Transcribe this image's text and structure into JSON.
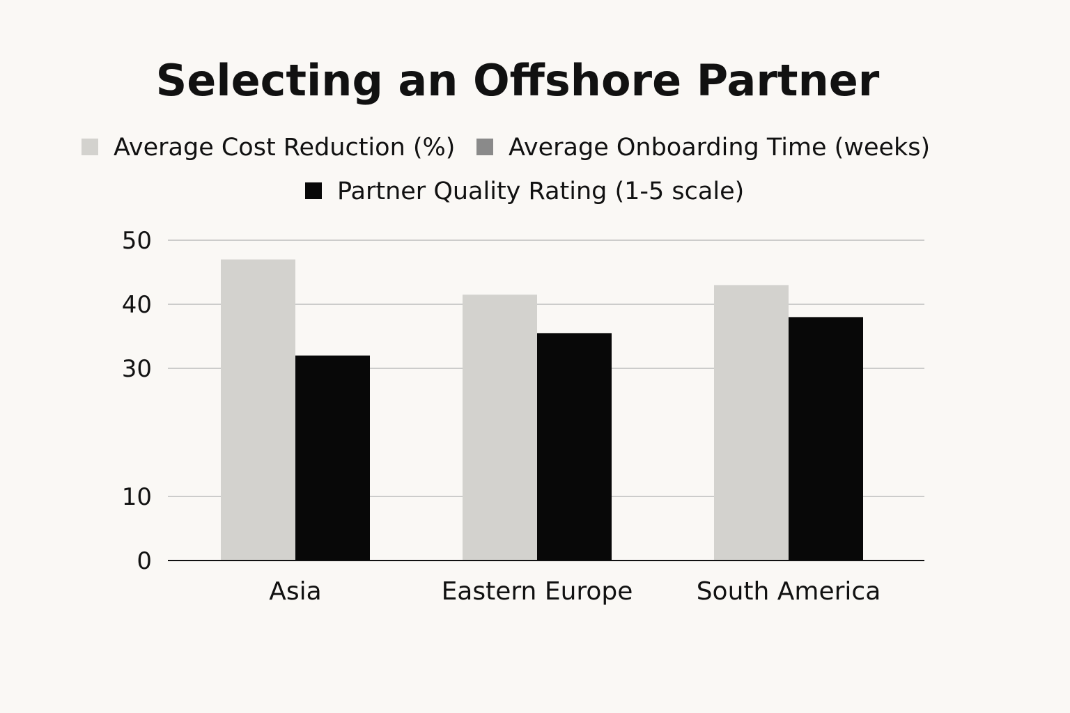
{
  "chart_data": {
    "type": "bar",
    "title": "Selecting an Offshore Partner",
    "xlabel": "",
    "ylabel": "",
    "categories": [
      "Asia",
      "Eastern Europe",
      "South America"
    ],
    "series": [
      {
        "name": "Average Cost Reduction (%)",
        "color": "#d3d2ce",
        "values": [
          47,
          41.5,
          43
        ]
      },
      {
        "name": "Average Onboarding Time (weeks)",
        "color": "#8a8a8a",
        "values": [
          null,
          null,
          null
        ]
      },
      {
        "name": "Partner Quality Rating (1-5 scale)",
        "color": "#080808",
        "values": [
          32,
          35.5,
          38
        ]
      }
    ],
    "ylim": [
      0,
      50
    ],
    "yticks": [
      0,
      10,
      30,
      40,
      50
    ],
    "grid": true,
    "legend_position": "top-center"
  }
}
